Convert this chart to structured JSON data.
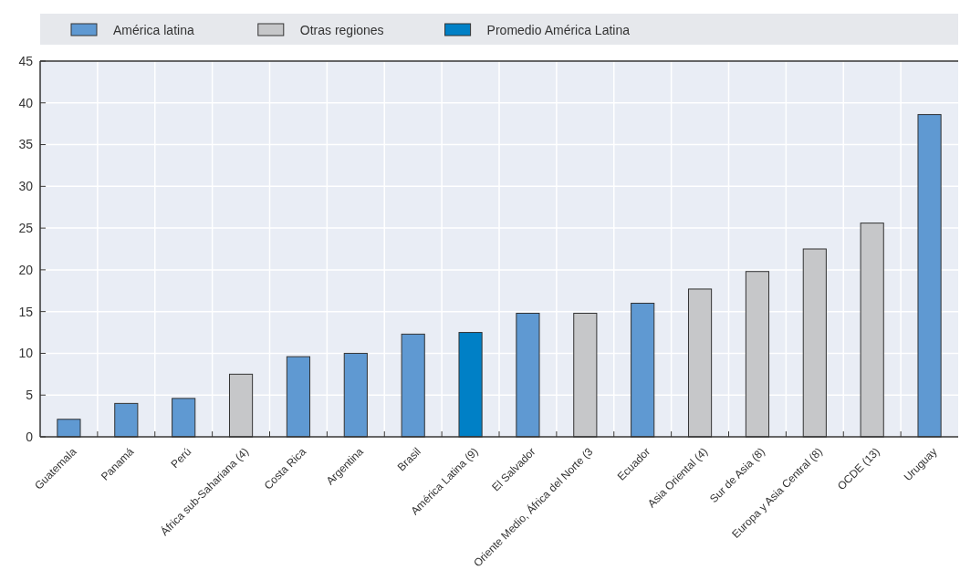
{
  "chart_data": {
    "type": "bar",
    "categories": [
      "Guatemala",
      "Panamá",
      "Perú",
      "África sub-Sahariana (4)",
      "Costa Rica",
      "Argentina",
      "Brasil",
      "América Latina (9)",
      "El Salvador",
      "Oriente Medio, África del Norte (3",
      "Ecuador",
      "Asia Oriental (4)",
      "Sur de Asia (8)",
      "Europa y Asia Central (8)",
      "OCDE (13)",
      "Uruguay"
    ],
    "series": [
      {
        "name": "América latina",
        "color": "#5f99d2",
        "values": [
          2.1,
          4,
          4.6,
          null,
          9.6,
          10,
          12.3,
          null,
          14.8,
          null,
          16,
          null,
          null,
          null,
          null,
          38.6
        ]
      },
      {
        "name": "Otras regiones",
        "color": "#c6c7c9",
        "values": [
          null,
          null,
          null,
          7.5,
          null,
          null,
          null,
          null,
          null,
          14.8,
          null,
          17.7,
          19.8,
          22.5,
          25.6,
          null
        ]
      },
      {
        "name": "Promedio América Latina",
        "color": "#0080c6",
        "values": [
          null,
          null,
          null,
          null,
          null,
          null,
          null,
          12.5,
          null,
          null,
          null,
          null,
          null,
          null,
          null,
          null
        ]
      }
    ],
    "ylim": [
      0,
      45
    ],
    "yticks": [
      0,
      5,
      10,
      15,
      20,
      25,
      30,
      35,
      40,
      45
    ],
    "grid": true,
    "legend": "top"
  }
}
